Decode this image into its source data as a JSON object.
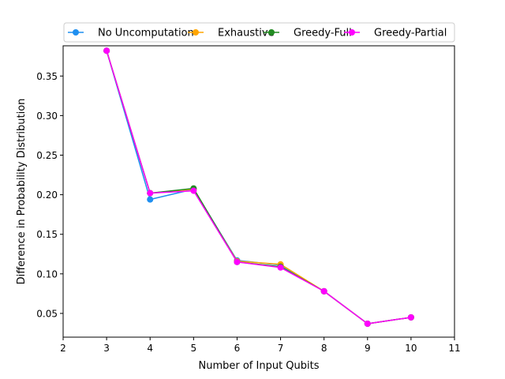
{
  "chart_data": {
    "type": "line",
    "title": "",
    "xlabel": "Number of Input Qubits",
    "ylabel": "Difference in Probability Distribution",
    "xlim": [
      2,
      11
    ],
    "ylim": [
      0.02,
      0.3882
    ],
    "xticks": [
      2,
      3,
      4,
      5,
      6,
      7,
      8,
      9,
      10,
      11
    ],
    "yticks": [
      0.05,
      0.1,
      0.15,
      0.2,
      0.25,
      0.3,
      0.35
    ],
    "ytick_labels": [
      "0.05",
      "0.10",
      "0.15",
      "0.20",
      "0.25",
      "0.30",
      "0.35"
    ],
    "grid": false,
    "legend": {
      "placement": "top",
      "columns": 4
    },
    "x": [
      3,
      4,
      5,
      6,
      7,
      8,
      9,
      10
    ],
    "series": [
      {
        "name": "No Uncomputation",
        "color": "#1f8ff0",
        "marker": "circle",
        "values": [
          0.382,
          0.194,
          0.207,
          0.117,
          0.111,
          0.078,
          0.037,
          0.045
        ]
      },
      {
        "name": "Exhaustive",
        "color": "#ffa500",
        "marker": "circle",
        "values": [
          0.382,
          0.202,
          0.207,
          0.116,
          0.112,
          0.078,
          0.037,
          0.045
        ]
      },
      {
        "name": "Greedy-Full",
        "color": "#228b22",
        "marker": "circle",
        "values": [
          0.382,
          0.202,
          0.208,
          0.115,
          0.109,
          0.078,
          0.037,
          0.045
        ]
      },
      {
        "name": "Greedy-Partial",
        "color": "#ff00ff",
        "marker": "circle",
        "values": [
          0.382,
          0.202,
          0.205,
          0.115,
          0.108,
          0.078,
          0.037,
          0.045
        ]
      }
    ]
  }
}
